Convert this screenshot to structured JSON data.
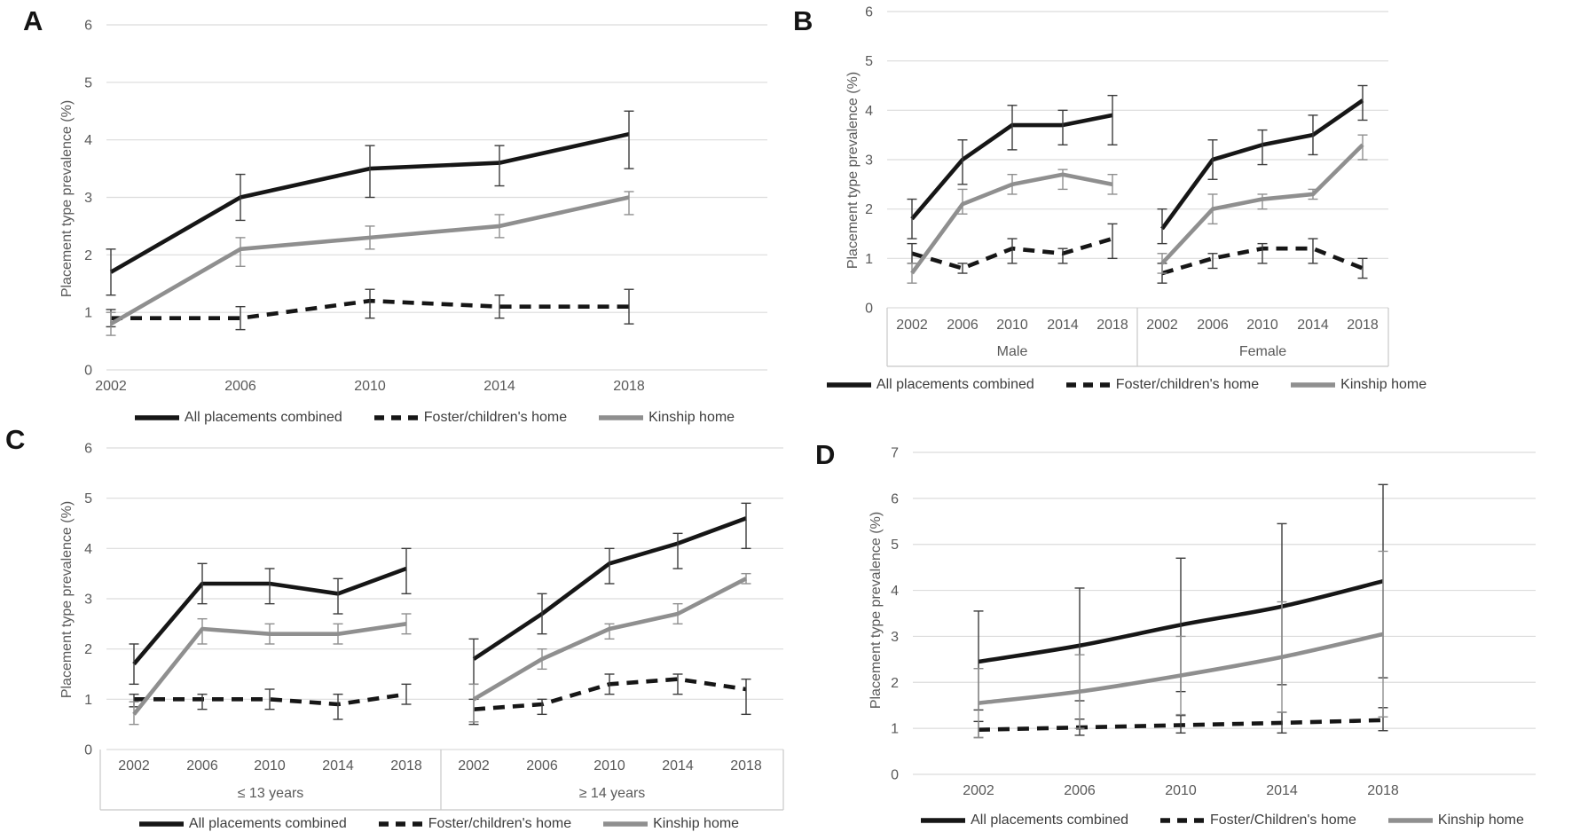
{
  "colors": {
    "line_black": "#161616",
    "line_gray": "#8f8f8f",
    "error_bar_dark": "#3c3c3c",
    "gridline": "#dcdcdc",
    "band_border": "#c8c8c8",
    "axis_text": "#595959",
    "legend_text": "#3d3d3d"
  },
  "panels": [
    {
      "letter": "A",
      "y_axis_label": "Placement type prevalence (%)",
      "legend": [
        {
          "label": "All placements combined",
          "style": "solid-black"
        },
        {
          "label": "Foster/children's home",
          "style": "dashed-black"
        },
        {
          "label": "Kinship home",
          "style": "solid-gray"
        }
      ]
    },
    {
      "letter": "B",
      "y_axis_label": "Placement type prevalence (%)",
      "legend": [
        {
          "label": "All placements combined",
          "style": "solid-black"
        },
        {
          "label": "Foster/children's home",
          "style": "dashed-black"
        },
        {
          "label": "Kinship home",
          "style": "solid-gray"
        }
      ]
    },
    {
      "letter": "C",
      "y_axis_label": "Placement type prevalence (%)",
      "legend": [
        {
          "label": "All placements combined",
          "style": "solid-black"
        },
        {
          "label": "Foster/children's home",
          "style": "dashed-black"
        },
        {
          "label": "Kinship home",
          "style": "solid-gray"
        }
      ]
    },
    {
      "letter": "D",
      "y_axis_label": "Placement type prevalence (%)",
      "legend": [
        {
          "label": "All placements combined",
          "style": "solid-black"
        },
        {
          "label": "Foster/Children's home",
          "style": "dashed-black"
        },
        {
          "label": "Kinship home",
          "style": "solid-gray"
        }
      ]
    }
  ],
  "chart_data": [
    {
      "panel": "A",
      "type": "line",
      "x": [
        2002,
        2006,
        2010,
        2014,
        2018
      ],
      "ylabel": "Placement type prevalence (%)",
      "ylim": [
        0,
        6
      ],
      "yticks": [
        0,
        1,
        2,
        3,
        4,
        5,
        6
      ],
      "grid": true,
      "error_bars": true,
      "legend_position": "bottom",
      "curve": "straight",
      "series": [
        {
          "name": "All placements combined",
          "style": "solid-black",
          "values": [
            1.7,
            3.0,
            3.5,
            3.6,
            4.1
          ],
          "ci_low": [
            1.3,
            2.6,
            3.0,
            3.2,
            3.5
          ],
          "ci_high": [
            2.1,
            3.4,
            3.9,
            3.9,
            4.5
          ]
        },
        {
          "name": "Foster/children's home",
          "style": "dashed-black",
          "values": [
            0.9,
            0.9,
            1.2,
            1.1,
            1.1
          ],
          "ci_low": [
            0.75,
            0.7,
            0.9,
            0.9,
            0.8
          ],
          "ci_high": [
            1.05,
            1.1,
            1.4,
            1.3,
            1.4
          ]
        },
        {
          "name": "Kinship home",
          "style": "solid-gray",
          "values": [
            0.8,
            2.1,
            2.3,
            2.5,
            3.0
          ],
          "ci_low": [
            0.6,
            1.8,
            2.1,
            2.3,
            2.7
          ],
          "ci_high": [
            1.0,
            2.3,
            2.5,
            2.7,
            3.1
          ]
        }
      ]
    },
    {
      "panel": "B",
      "type": "line",
      "x": [
        2002,
        2006,
        2010,
        2014,
        2018
      ],
      "ylabel": "Placement type prevalence (%)",
      "ylim": [
        0,
        6
      ],
      "yticks": [
        0,
        1,
        2,
        3,
        4,
        5,
        6
      ],
      "grid": true,
      "error_bars": true,
      "legend_position": "bottom",
      "curve": "straight",
      "groups": [
        {
          "label": "Male",
          "series": [
            {
              "name": "All placements combined",
              "style": "solid-black",
              "values": [
                1.8,
                3.0,
                3.7,
                3.7,
                3.9
              ],
              "ci_low": [
                1.4,
                2.5,
                3.2,
                3.3,
                3.3
              ],
              "ci_high": [
                2.2,
                3.4,
                4.1,
                4.0,
                4.3
              ]
            },
            {
              "name": "Foster/children's home",
              "style": "dashed-black",
              "values": [
                1.1,
                0.8,
                1.2,
                1.1,
                1.4
              ],
              "ci_low": [
                0.9,
                0.7,
                0.9,
                0.9,
                1.0
              ],
              "ci_high": [
                1.3,
                0.9,
                1.4,
                1.2,
                1.7
              ]
            },
            {
              "name": "Kinship home",
              "style": "solid-gray",
              "values": [
                0.7,
                2.1,
                2.5,
                2.7,
                2.5
              ],
              "ci_low": [
                0.5,
                1.9,
                2.3,
                2.4,
                2.3
              ],
              "ci_high": [
                0.9,
                2.4,
                2.7,
                2.8,
                2.7
              ]
            }
          ]
        },
        {
          "label": "Female",
          "series": [
            {
              "name": "All placements combined",
              "style": "solid-black",
              "values": [
                1.6,
                3.0,
                3.3,
                3.5,
                4.2
              ],
              "ci_low": [
                1.3,
                2.6,
                2.9,
                3.1,
                3.8
              ],
              "ci_high": [
                2.0,
                3.4,
                3.6,
                3.9,
                4.5
              ]
            },
            {
              "name": "Foster/children's home",
              "style": "dashed-black",
              "values": [
                0.7,
                1.0,
                1.2,
                1.2,
                0.8
              ],
              "ci_low": [
                0.5,
                0.8,
                0.9,
                0.9,
                0.6
              ],
              "ci_high": [
                0.9,
                1.1,
                1.3,
                1.4,
                1.0
              ]
            },
            {
              "name": "Kinship home",
              "style": "solid-gray",
              "values": [
                0.9,
                2.0,
                2.2,
                2.3,
                3.3
              ],
              "ci_low": [
                0.7,
                1.7,
                2.0,
                2.2,
                3.0
              ],
              "ci_high": [
                1.1,
                2.3,
                2.3,
                2.4,
                3.5
              ]
            }
          ]
        }
      ]
    },
    {
      "panel": "C",
      "type": "line",
      "x": [
        2002,
        2006,
        2010,
        2014,
        2018
      ],
      "ylabel": "Placement type prevalence (%)",
      "ylim": [
        0,
        6
      ],
      "yticks": [
        0,
        1,
        2,
        3,
        4,
        5,
        6
      ],
      "grid": true,
      "error_bars": true,
      "legend_position": "bottom",
      "curve": "straight",
      "groups": [
        {
          "label": "≤ 13 years",
          "series": [
            {
              "name": "All placements combined",
              "style": "solid-black",
              "values": [
                1.7,
                3.3,
                3.3,
                3.1,
                3.6
              ],
              "ci_low": [
                1.3,
                2.9,
                2.9,
                2.7,
                3.1
              ],
              "ci_high": [
                2.1,
                3.7,
                3.6,
                3.4,
                4.0
              ]
            },
            {
              "name": "Foster/children's home",
              "style": "dashed-black",
              "values": [
                1.0,
                1.0,
                1.0,
                0.9,
                1.1
              ],
              "ci_low": [
                0.85,
                0.8,
                0.8,
                0.6,
                0.9
              ],
              "ci_high": [
                1.1,
                1.1,
                1.2,
                1.1,
                1.3
              ]
            },
            {
              "name": "Kinship home",
              "style": "solid-gray",
              "values": [
                0.7,
                2.4,
                2.3,
                2.3,
                2.5
              ],
              "ci_low": [
                0.5,
                2.1,
                2.1,
                2.1,
                2.3
              ],
              "ci_high": [
                0.95,
                2.6,
                2.5,
                2.5,
                2.7
              ]
            }
          ]
        },
        {
          "label": "≥ 14 years",
          "series": [
            {
              "name": "All placements combined",
              "style": "solid-black",
              "values": [
                1.8,
                2.7,
                3.7,
                4.1,
                4.6
              ],
              "ci_low": [
                1.3,
                2.3,
                3.3,
                3.6,
                4.0
              ],
              "ci_high": [
                2.2,
                3.1,
                4.0,
                4.3,
                4.9
              ]
            },
            {
              "name": "Foster/children's home",
              "style": "dashed-black",
              "values": [
                0.8,
                0.9,
                1.3,
                1.4,
                1.2
              ],
              "ci_low": [
                0.5,
                0.7,
                1.1,
                1.1,
                0.7
              ],
              "ci_high": [
                1.0,
                1.0,
                1.5,
                1.5,
                1.4
              ]
            },
            {
              "name": "Kinship home",
              "style": "solid-gray",
              "values": [
                1.0,
                1.8,
                2.4,
                2.7,
                3.4
              ],
              "ci_low": [
                0.55,
                1.6,
                2.2,
                2.5,
                3.3
              ],
              "ci_high": [
                1.3,
                2.0,
                2.5,
                2.9,
                3.5
              ]
            }
          ]
        }
      ]
    },
    {
      "panel": "D",
      "type": "line",
      "x": [
        2002,
        2006,
        2010,
        2014,
        2018
      ],
      "ylabel": "Placement type prevalence (%)",
      "ylim": [
        0,
        7
      ],
      "yticks": [
        0,
        1,
        2,
        3,
        4,
        5,
        6,
        7
      ],
      "grid": true,
      "error_bars": true,
      "legend_position": "bottom",
      "curve": "smooth",
      "series": [
        {
          "name": "All placements combined",
          "style": "solid-black",
          "values": [
            2.45,
            2.8,
            3.25,
            3.65,
            4.2
          ],
          "ci_low": [
            1.4,
            1.6,
            1.8,
            1.95,
            2.1
          ],
          "ci_high": [
            3.55,
            4.05,
            4.7,
            5.45,
            6.3
          ]
        },
        {
          "name": "Foster/Children's home",
          "style": "dashed-black",
          "values": [
            0.97,
            1.02,
            1.07,
            1.12,
            1.18
          ],
          "ci_low": [
            0.8,
            0.85,
            0.9,
            0.9,
            0.95
          ],
          "ci_high": [
            1.15,
            1.2,
            1.28,
            1.35,
            1.45
          ]
        },
        {
          "name": "Kinship home",
          "style": "solid-gray",
          "values": [
            1.55,
            1.8,
            2.15,
            2.55,
            3.05
          ],
          "ci_low": [
            0.8,
            1.0,
            1.3,
            1.35,
            1.25
          ],
          "ci_high": [
            2.3,
            2.6,
            3.0,
            3.75,
            4.85
          ]
        }
      ]
    }
  ]
}
